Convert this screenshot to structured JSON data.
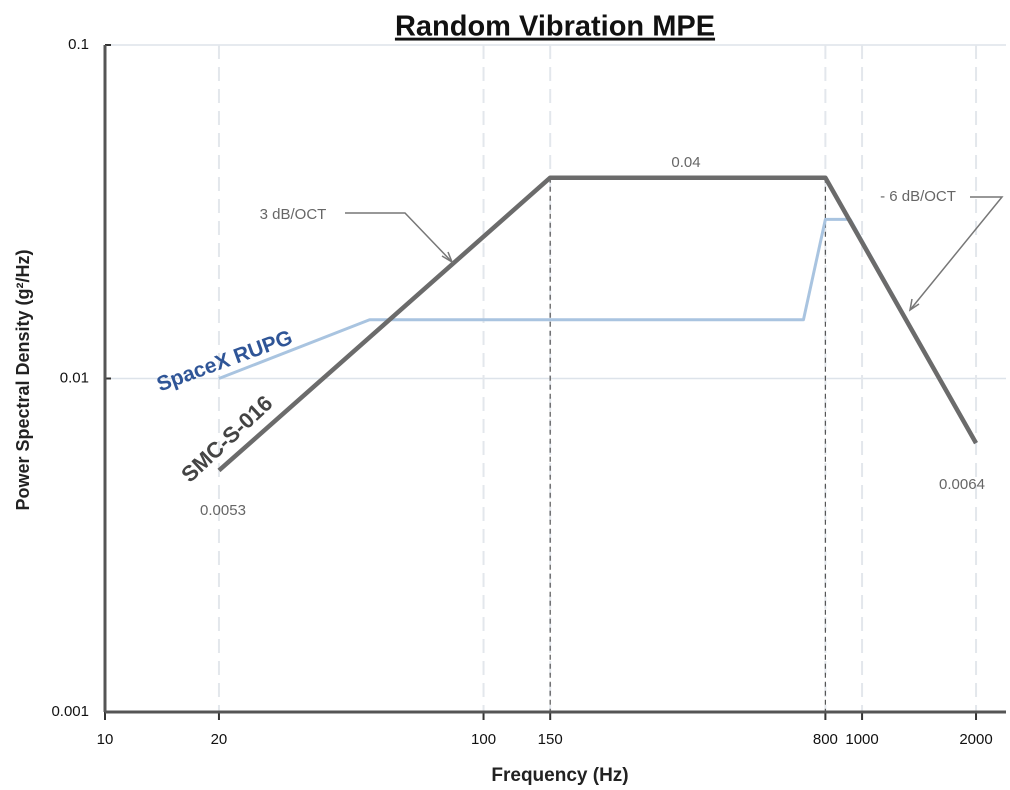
{
  "chart_data": {
    "type": "line",
    "title": "Random Vibration MPE",
    "x_label": "Frequency (Hz)",
    "y_label": "Power Spectral Density (g²/Hz)",
    "log_x": true,
    "log_y": true,
    "grid": true,
    "xlim": [
      10,
      2400
    ],
    "xticks": [
      10,
      20,
      100,
      150,
      800,
      1000,
      2000
    ],
    "ylim": [
      0.001,
      0.1
    ],
    "yticks": [
      0.001,
      0.01,
      0.1
    ],
    "series": [
      {
        "name": "SpaceX RUPG",
        "color": "#a9c4e0",
        "label_color": "#2f5597",
        "x": [
          20,
          50,
          700,
          800,
          930,
          2000
        ],
        "values": [
          0.01,
          0.015,
          0.015,
          0.03,
          0.03,
          0.0064
        ]
      },
      {
        "name": "SMC-S-016",
        "color": "#6b6b6b",
        "label_color": "#444444",
        "x": [
          20,
          150,
          800,
          2000
        ],
        "values": [
          0.0053,
          0.04,
          0.04,
          0.0064
        ]
      }
    ],
    "annotations": [
      "3 dB/OCT",
      "- 6 dB/OCT",
      "0.04",
      "0.0053",
      "0.0064"
    ]
  }
}
